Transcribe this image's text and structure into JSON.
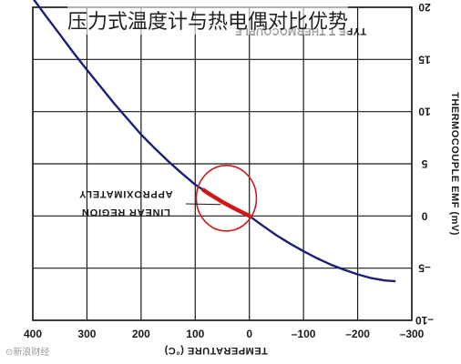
{
  "overlay": {
    "title": "压力式温度计与热电偶对比优势",
    "watermark": "⊙新浪财经"
  },
  "chart_data": {
    "type": "line",
    "title": "",
    "inset_label": "TYPE T THERMOCOUPLE",
    "xlabel": "TEMPERATURE (°C)",
    "ylabel": "THERMOCOUPLE EMF (mV)",
    "xlim": [
      400,
      -300
    ],
    "ylim": [
      -10,
      20
    ],
    "x_ticks": [
      400,
      300,
      200,
      100,
      0,
      -100,
      -200,
      -300
    ],
    "x_tick_labels": [
      "400",
      "300",
      "200",
      "100",
      "0",
      "–100",
      "–200",
      "–300"
    ],
    "y_ticks": [
      -10,
      -5,
      0,
      5,
      10,
      15,
      20
    ],
    "y_tick_labels": [
      "–10",
      "–5",
      "0",
      "5",
      "10",
      "15",
      "20"
    ],
    "grid": true,
    "annotation": [
      "APPROXIMATELY",
      "LINEAR REGION"
    ],
    "highlight_x_range": [
      85,
      0
    ],
    "colors": {
      "curve": "#1b1f7a",
      "highlight": "#cc1a1a",
      "circle": "#cc1a1a",
      "grid": "#1a1a1a"
    },
    "series": [
      {
        "x": [
          400,
          375,
          350,
          325,
          300,
          275,
          250,
          225,
          200,
          175,
          150,
          125,
          100,
          75,
          50,
          25,
          0,
          -25,
          -50,
          -75,
          -100,
          -125,
          -150,
          -175,
          -200,
          -225,
          -250,
          -270
        ],
        "y": [
          20.87,
          19.1,
          17.4,
          15.65,
          14.0,
          12.4,
          10.8,
          9.3,
          7.8,
          6.5,
          5.25,
          4.1,
          3.0,
          2.15,
          1.35,
          0.65,
          0.0,
          -0.95,
          -1.85,
          -2.65,
          -3.38,
          -4.05,
          -4.65,
          -5.15,
          -5.6,
          -5.95,
          -6.18,
          -6.26
        ]
      }
    ]
  }
}
